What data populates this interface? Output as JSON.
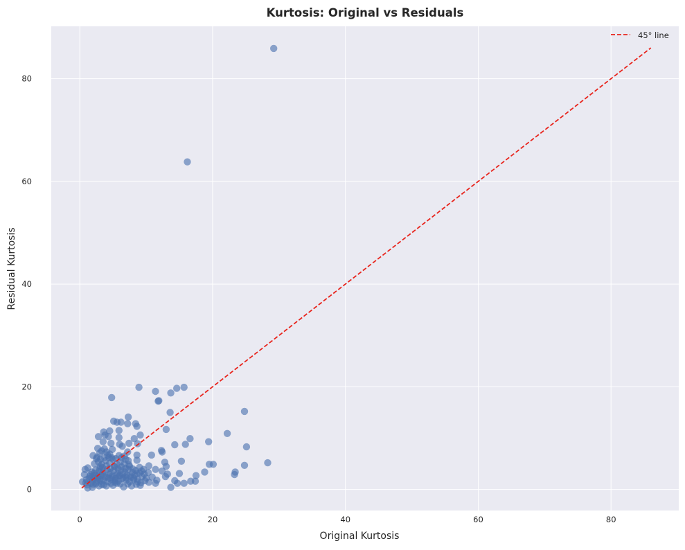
{
  "chart_data": {
    "type": "scatter",
    "title": "Kurtosis: Original vs Residuals",
    "xlabel": "Original Kurtosis",
    "ylabel": "Residual Kurtosis",
    "xlim": [
      -4.3,
      90.2
    ],
    "ylim": [
      -4.1,
      90.2
    ],
    "xticks": [
      0,
      20,
      40,
      60,
      80
    ],
    "yticks": [
      0,
      20,
      40,
      60,
      80
    ],
    "grid": true,
    "legend_position": "top-right",
    "colors": {
      "background": "#eaeaf2",
      "grid": "#ffffff",
      "points": "#4c72b0",
      "reference_line": "#e8241c"
    },
    "reference_line": {
      "label": "45° line",
      "style": "dashed",
      "from": [
        0.3,
        0.3
      ],
      "to": [
        86,
        86
      ]
    },
    "series": [
      {
        "points": [
          [
            29.2,
            85.9
          ],
          [
            16.2,
            63.8
          ],
          [
            8.9,
            19.9
          ],
          [
            15.7,
            19.9
          ],
          [
            14.6,
            19.7
          ],
          [
            11.4,
            19.1
          ],
          [
            13.7,
            18.8
          ],
          [
            4.8,
            17.9
          ],
          [
            11.9,
            17.3
          ],
          [
            11.8,
            17.2
          ],
          [
            24.8,
            15.2
          ],
          [
            13.6,
            15.0
          ],
          [
            7.3,
            14.1
          ],
          [
            5.1,
            13.3
          ],
          [
            5.6,
            13.1
          ],
          [
            6.2,
            13.1
          ],
          [
            7.2,
            12.8
          ],
          [
            8.4,
            12.8
          ],
          [
            8.6,
            12.3
          ],
          [
            13.0,
            11.7
          ],
          [
            4.5,
            11.4
          ],
          [
            5.9,
            11.5
          ],
          [
            3.6,
            11.2
          ],
          [
            22.2,
            10.9
          ],
          [
            9.1,
            10.6
          ],
          [
            3.8,
            10.6
          ],
          [
            2.8,
            10.3
          ],
          [
            4.3,
            10.3
          ],
          [
            5.9,
            10.1
          ],
          [
            8.2,
            9.9
          ],
          [
            16.6,
            9.9
          ],
          [
            19.4,
            9.3
          ],
          [
            3.5,
            9.3
          ],
          [
            4.7,
            9.0
          ],
          [
            6.0,
            8.8
          ],
          [
            7.4,
            9.0
          ],
          [
            8.7,
            8.9
          ],
          [
            14.3,
            8.7
          ],
          [
            15.9,
            8.8
          ],
          [
            6.4,
            8.4
          ],
          [
            25.1,
            8.3
          ],
          [
            2.7,
            8.0
          ],
          [
            3.7,
            7.9
          ],
          [
            12.3,
            7.6
          ],
          [
            12.4,
            7.3
          ],
          [
            7.2,
            7.3
          ],
          [
            3.0,
            7.1
          ],
          [
            4.5,
            6.9
          ],
          [
            5.9,
            6.6
          ],
          [
            6.7,
            6.5
          ],
          [
            8.6,
            6.7
          ],
          [
            10.8,
            6.7
          ],
          [
            2.0,
            6.6
          ],
          [
            2.6,
            6.3
          ],
          [
            4.4,
            6.2
          ],
          [
            15.3,
            5.5
          ],
          [
            12.8,
            5.3
          ],
          [
            28.3,
            5.2
          ],
          [
            8.6,
            5.7
          ],
          [
            20.1,
            4.9
          ],
          [
            19.5,
            4.9
          ],
          [
            24.8,
            4.7
          ],
          [
            13.0,
            4.5
          ],
          [
            10.4,
            4.6
          ],
          [
            7.4,
            4.8
          ],
          [
            5.3,
            4.4
          ],
          [
            3.1,
            4.5
          ],
          [
            1.2,
            4.2
          ],
          [
            0.8,
            3.9
          ],
          [
            11.4,
            3.9
          ],
          [
            9.3,
            3.6
          ],
          [
            12.4,
            3.6
          ],
          [
            18.8,
            3.4
          ],
          [
            23.4,
            3.4
          ],
          [
            23.3,
            2.9
          ],
          [
            13.2,
            3.0
          ],
          [
            15.0,
            3.1
          ],
          [
            17.5,
            2.7
          ],
          [
            12.9,
            2.5
          ],
          [
            8.6,
            3.1
          ],
          [
            0.7,
            2.9
          ],
          [
            1.5,
            2.5
          ],
          [
            2.1,
            2.2
          ],
          [
            2.6,
            1.8
          ],
          [
            3.2,
            1.6
          ],
          [
            0.4,
            1.5
          ],
          [
            1.7,
            1.2
          ],
          [
            2.4,
            1.1
          ],
          [
            3.3,
            1.0
          ],
          [
            4.7,
            1.2
          ],
          [
            5.3,
            1.4
          ],
          [
            6.1,
            1.1
          ],
          [
            7.8,
            0.7
          ],
          [
            9.1,
            0.8
          ],
          [
            10.4,
            1.4
          ],
          [
            11.4,
            1.2
          ],
          [
            11.6,
            1.8
          ],
          [
            14.3,
            1.7
          ],
          [
            16.7,
            1.6
          ],
          [
            17.4,
            1.6
          ],
          [
            15.7,
            1.2
          ],
          [
            14.7,
            1.2
          ],
          [
            13.7,
            0.4
          ],
          [
            6.6,
            0.5
          ],
          [
            4.0,
            0.7
          ],
          [
            2.9,
            0.7
          ],
          [
            1.9,
            0.4
          ],
          [
            1.2,
            0.3
          ],
          [
            0.9,
            1.3
          ],
          [
            2.3,
            2.8
          ],
          [
            2.8,
            2.7
          ],
          [
            3.4,
            3.0
          ],
          [
            3.9,
            2.4
          ],
          [
            4.4,
            2.9
          ],
          [
            4.9,
            2.3
          ],
          [
            5.5,
            2.8
          ],
          [
            6.0,
            2.6
          ],
          [
            6.5,
            3.0
          ],
          [
            7.0,
            2.3
          ],
          [
            7.6,
            2.7
          ],
          [
            8.1,
            2.2
          ],
          [
            8.7,
            2.0
          ],
          [
            9.4,
            2.5
          ],
          [
            10.0,
            2.2
          ],
          [
            10.9,
            2.4
          ],
          [
            1.8,
            3.4
          ],
          [
            2.4,
            3.8
          ],
          [
            3.0,
            4.1
          ],
          [
            3.5,
            3.6
          ],
          [
            4.1,
            3.9
          ],
          [
            4.6,
            3.3
          ],
          [
            5.1,
            3.7
          ],
          [
            5.7,
            3.2
          ],
          [
            6.2,
            3.8
          ],
          [
            6.8,
            3.4
          ],
          [
            7.3,
            3.9
          ],
          [
            7.9,
            3.3
          ],
          [
            8.4,
            3.7
          ],
          [
            9.0,
            3.2
          ],
          [
            9.6,
            3.9
          ],
          [
            2.2,
            5.0
          ],
          [
            2.8,
            5.4
          ],
          [
            3.3,
            4.9
          ],
          [
            3.9,
            5.6
          ],
          [
            4.5,
            5.1
          ],
          [
            5.0,
            5.9
          ],
          [
            5.6,
            4.9
          ],
          [
            6.1,
            5.3
          ],
          [
            6.7,
            5.0
          ],
          [
            7.3,
            5.6
          ],
          [
            1.4,
            2.1
          ],
          [
            1.9,
            1.7
          ],
          [
            2.5,
            1.4
          ],
          [
            3.0,
            2.0
          ],
          [
            3.6,
            1.8
          ],
          [
            4.2,
            1.5
          ],
          [
            4.7,
            2.0
          ],
          [
            5.3,
            1.8
          ],
          [
            5.8,
            1.6
          ],
          [
            6.4,
            2.1
          ],
          [
            7.0,
            1.8
          ],
          [
            7.5,
            1.5
          ],
          [
            8.1,
            1.9
          ],
          [
            8.7,
            1.5
          ],
          [
            9.2,
            1.3
          ],
          [
            9.8,
            1.7
          ],
          [
            2.0,
            2.6
          ],
          [
            2.7,
            2.3
          ],
          [
            3.2,
            2.8
          ],
          [
            3.8,
            2.6
          ],
          [
            4.3,
            2.2
          ],
          [
            4.9,
            2.6
          ],
          [
            5.4,
            2.1
          ],
          [
            6.0,
            2.7
          ],
          [
            6.6,
            2.3
          ],
          [
            7.1,
            2.8
          ],
          [
            7.7,
            2.4
          ],
          [
            8.3,
            2.8
          ],
          [
            1.0,
            1.9
          ],
          [
            1.6,
            2.9
          ],
          [
            2.2,
            3.2
          ],
          [
            2.9,
            3.5
          ],
          [
            3.4,
            4.3
          ],
          [
            4.0,
            4.6
          ],
          [
            4.6,
            4.1
          ],
          [
            5.2,
            4.5
          ],
          [
            5.8,
            4.0
          ],
          [
            6.3,
            4.4
          ],
          [
            6.9,
            4.1
          ],
          [
            7.5,
            4.5
          ],
          [
            8.0,
            4.0
          ],
          [
            9.0,
            4.3
          ],
          [
            9.7,
            3.0
          ],
          [
            10.3,
            3.3
          ],
          [
            2.5,
            6.0
          ],
          [
            3.1,
            5.9
          ],
          [
            3.7,
            6.2
          ],
          [
            4.2,
            6.7
          ],
          [
            4.8,
            6.2
          ],
          [
            5.4,
            6.0
          ],
          [
            6.3,
            6.2
          ],
          [
            6.9,
            5.9
          ],
          [
            3.3,
            7.5
          ],
          [
            4.0,
            7.3
          ],
          [
            4.9,
            7.8
          ],
          [
            1.1,
            0.9
          ],
          [
            2.0,
            1.0
          ],
          [
            3.6,
            0.9
          ],
          [
            5.0,
            0.8
          ],
          [
            5.6,
            1.2
          ],
          [
            7.2,
            1.1
          ],
          [
            8.5,
            1.0
          ]
        ]
      }
    ]
  }
}
